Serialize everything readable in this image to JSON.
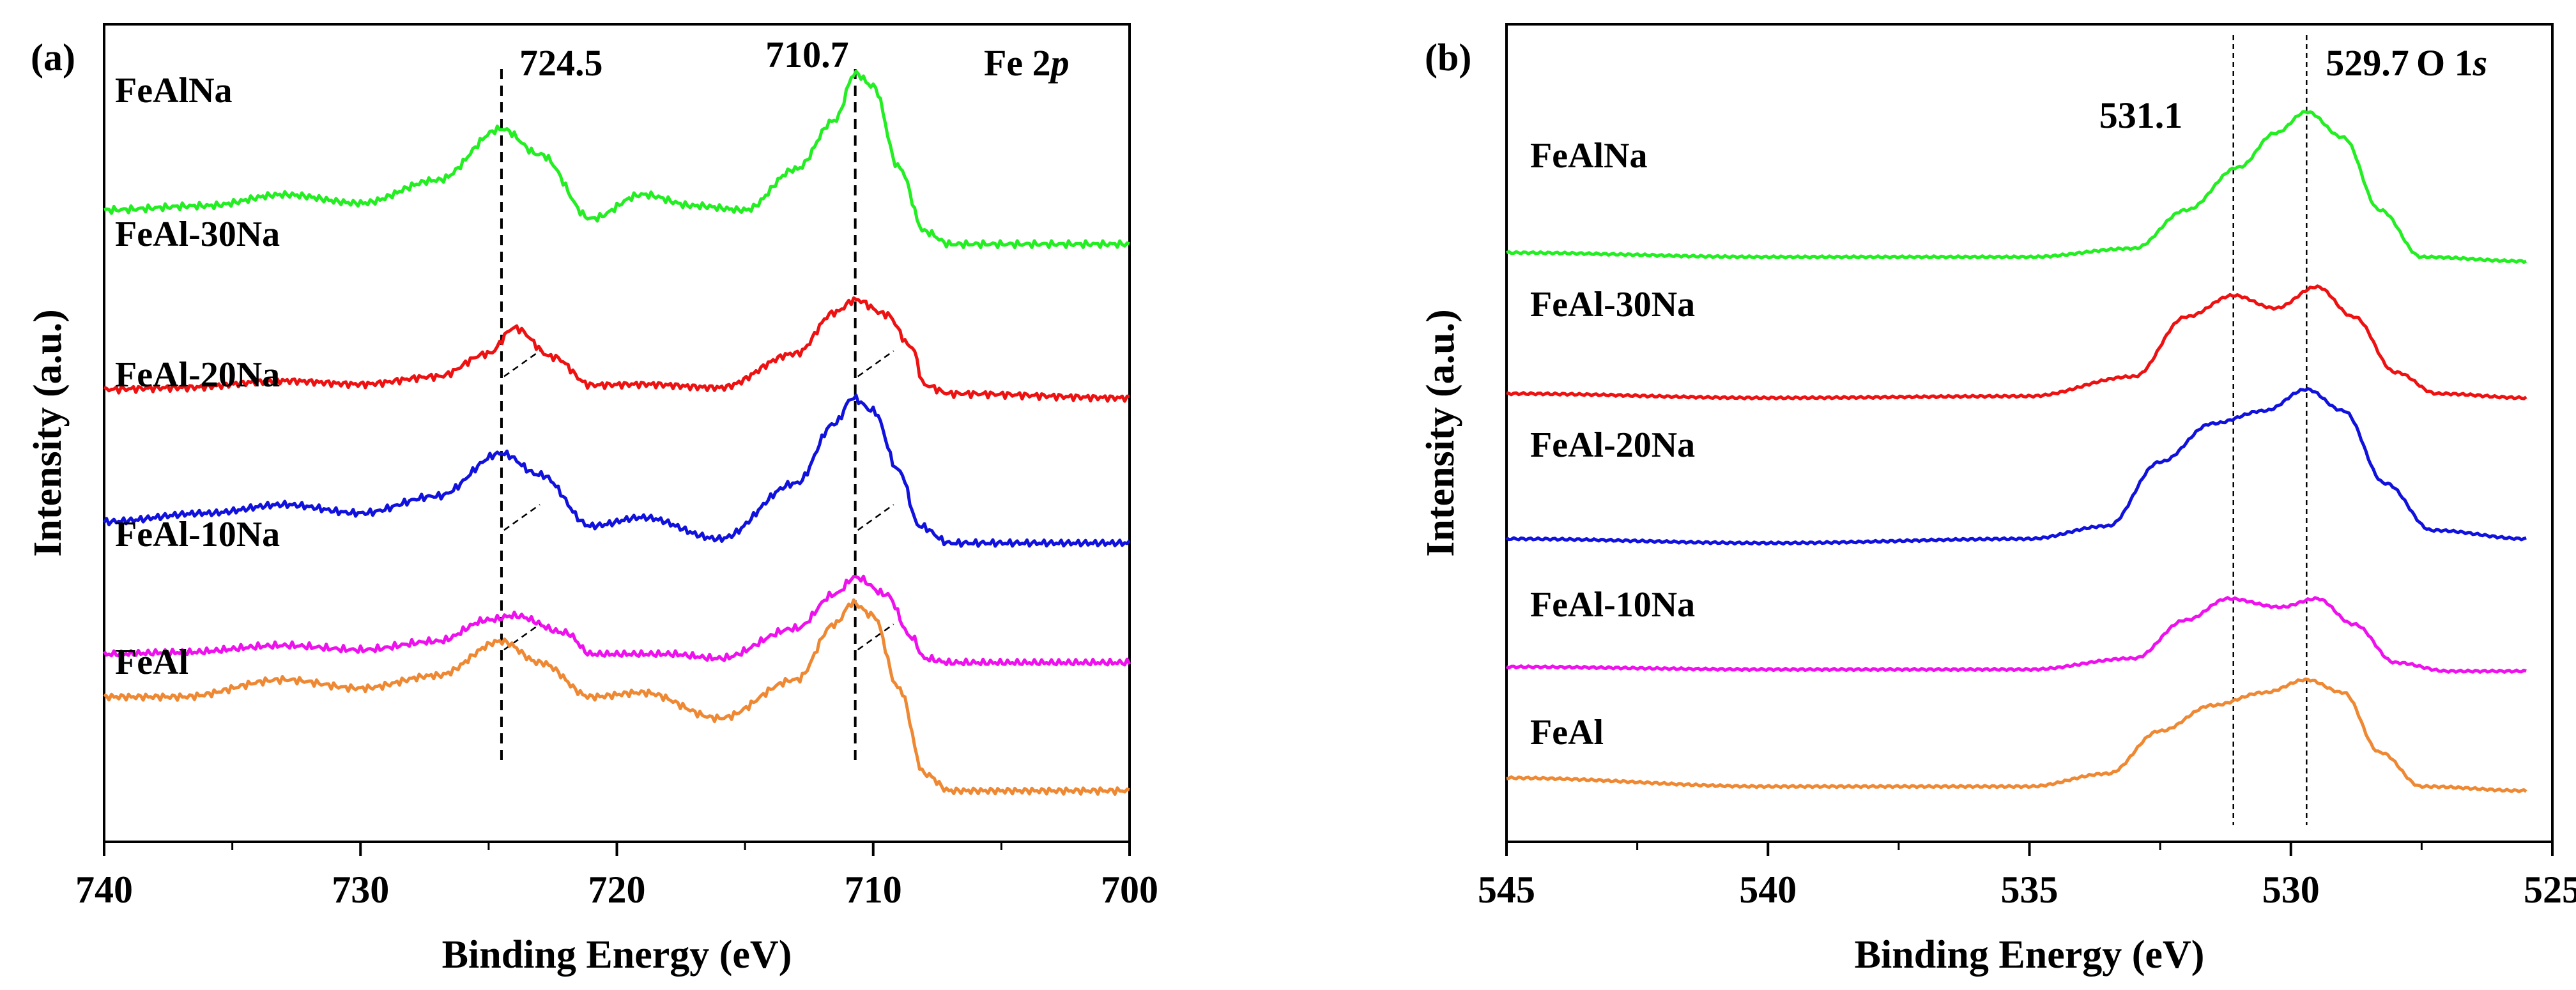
{
  "chart_data": [
    {
      "type": "line",
      "panel_label": "(a)",
      "element": "Fe 2",
      "element_orbital": "p",
      "xlabel": "Binding Energy (eV)",
      "ylabel": "Intensity (a.u.)",
      "xlim": [
        740,
        700
      ],
      "ticks": [
        740,
        730,
        720,
        710,
        700
      ],
      "tick_labels": [
        "740",
        "730",
        "720",
        "710",
        "700"
      ],
      "peaks": [
        {
          "position": 724.5,
          "label": "724.5"
        },
        {
          "position": 710.7,
          "label": "710.7"
        }
      ],
      "series": [
        {
          "name": "FeAlNa",
          "color": "#22ee22",
          "baseline": 6.4,
          "points": [
            [
              740,
              0.4
            ],
            [
              736,
              0.45
            ],
            [
              733,
              0.58
            ],
            [
              730,
              0.48
            ],
            [
              727,
              0.75
            ],
            [
              724.5,
              1.35
            ],
            [
              723,
              1.05
            ],
            [
              721,
              0.3
            ],
            [
              719,
              0.58
            ],
            [
              717,
              0.45
            ],
            [
              715,
              0.4
            ],
            [
              713,
              0.88
            ],
            [
              711.5,
              1.45
            ],
            [
              710.7,
              2.0
            ],
            [
              710,
              1.85
            ],
            [
              709,
              0.9
            ],
            [
              708,
              0.15
            ],
            [
              707,
              0.0
            ],
            [
              700,
              0.0
            ]
          ]
        },
        {
          "name": "FeAl-30Na",
          "color": "#ee1111",
          "baseline": 4.7,
          "points": [
            [
              740,
              0.0
            ],
            [
              737,
              0.02
            ],
            [
              733,
              0.1
            ],
            [
              730,
              0.06
            ],
            [
              727,
              0.15
            ],
            [
              725,
              0.42
            ],
            [
              724,
              0.72
            ],
            [
              722.5,
              0.38
            ],
            [
              721,
              0.05
            ],
            [
              719,
              0.06
            ],
            [
              716,
              0.02
            ],
            [
              713,
              0.42
            ],
            [
              711.5,
              0.9
            ],
            [
              710.7,
              1.05
            ],
            [
              709.5,
              0.88
            ],
            [
              708.5,
              0.5
            ],
            [
              708,
              0.05
            ],
            [
              707,
              -0.05
            ],
            [
              700,
              -0.1
            ]
          ]
        },
        {
          "name": "FeAl-20Na",
          "color": "#1111dd",
          "baseline": 2.9,
          "points": [
            [
              740,
              0.25
            ],
            [
              736,
              0.35
            ],
            [
              733,
              0.45
            ],
            [
              730,
              0.35
            ],
            [
              727,
              0.55
            ],
            [
              724.5,
              1.05
            ],
            [
              723,
              0.8
            ],
            [
              721,
              0.2
            ],
            [
              719,
              0.3
            ],
            [
              716,
              0.05
            ],
            [
              713,
              0.7
            ],
            [
              711.5,
              1.4
            ],
            [
              710.8,
              1.7
            ],
            [
              710,
              1.55
            ],
            [
              709,
              0.85
            ],
            [
              708.2,
              0.2
            ],
            [
              707,
              0.0
            ],
            [
              700,
              0.0
            ]
          ]
        },
        {
          "name": "FeAl-10Na",
          "color": "#ee11ee",
          "baseline": 1.5,
          "points": [
            [
              740,
              0.1
            ],
            [
              737,
              0.12
            ],
            [
              733,
              0.2
            ],
            [
              730,
              0.15
            ],
            [
              727,
              0.25
            ],
            [
              725,
              0.5
            ],
            [
              724,
              0.55
            ],
            [
              722,
              0.35
            ],
            [
              721,
              0.1
            ],
            [
              718,
              0.1
            ],
            [
              716,
              0.05
            ],
            [
              713,
              0.4
            ],
            [
              711.5,
              0.8
            ],
            [
              710.7,
              1.0
            ],
            [
              709.5,
              0.8
            ],
            [
              708.5,
              0.3
            ],
            [
              708,
              0.05
            ],
            [
              707,
              0.0
            ],
            [
              700,
              0.0
            ]
          ]
        },
        {
          "name": "FeAl",
          "color": "#ee8833",
          "baseline": 0.0,
          "points": [
            [
              740,
              1.1
            ],
            [
              737,
              1.1
            ],
            [
              733,
              1.3
            ],
            [
              730,
              1.2
            ],
            [
              727,
              1.35
            ],
            [
              724.5,
              1.75
            ],
            [
              723,
              1.5
            ],
            [
              721,
              1.1
            ],
            [
              719,
              1.15
            ],
            [
              716,
              0.85
            ],
            [
              713,
              1.3
            ],
            [
              711.5,
              1.95
            ],
            [
              710.8,
              2.2
            ],
            [
              710,
              2.05
            ],
            [
              709,
              1.2
            ],
            [
              708,
              0.2
            ],
            [
              707,
              0.0
            ],
            [
              700,
              0.0
            ]
          ]
        }
      ]
    },
    {
      "type": "line",
      "panel_label": "(b)",
      "element": "O 1",
      "element_orbital": "s",
      "xlabel": "Binding Energy (eV)",
      "ylabel": "Intensity (a.u.)",
      "xlim": [
        545,
        525
      ],
      "ticks": [
        545,
        540,
        535,
        530,
        525
      ],
      "tick_labels": [
        "545",
        "540",
        "535",
        "530",
        "525"
      ],
      "peaks": [
        {
          "position": 531.1,
          "label": "531.1"
        },
        {
          "position": 529.7,
          "label": "529.7"
        }
      ],
      "series": [
        {
          "name": "FeAlNa",
          "color": "#22ee22",
          "baseline": 6.2,
          "points": [
            [
              545,
              0.1
            ],
            [
              540,
              0.05
            ],
            [
              535,
              0.05
            ],
            [
              533,
              0.15
            ],
            [
              532,
              0.6
            ],
            [
              531,
              1.1
            ],
            [
              530.3,
              1.5
            ],
            [
              529.7,
              1.75
            ],
            [
              529,
              1.45
            ],
            [
              528.3,
              0.6
            ],
            [
              527.5,
              0.05
            ],
            [
              525.5,
              0.0
            ]
          ]
        },
        {
          "name": "FeAl-30Na",
          "color": "#ee1111",
          "baseline": 4.6,
          "points": [
            [
              545,
              0.05
            ],
            [
              540,
              0.0
            ],
            [
              535,
              0.02
            ],
            [
              533,
              0.25
            ],
            [
              532,
              0.95
            ],
            [
              531.1,
              1.2
            ],
            [
              530.3,
              1.05
            ],
            [
              529.5,
              1.3
            ],
            [
              528.8,
              0.95
            ],
            [
              528,
              0.3
            ],
            [
              527.2,
              0.05
            ],
            [
              525.5,
              0.0
            ]
          ]
        },
        {
          "name": "FeAl-20Na",
          "color": "#1111dd",
          "baseline": 2.9,
          "points": [
            [
              545,
              0.05
            ],
            [
              540,
              0.0
            ],
            [
              535,
              0.05
            ],
            [
              533.5,
              0.2
            ],
            [
              532.5,
              0.95
            ],
            [
              531.5,
              1.4
            ],
            [
              530.5,
              1.55
            ],
            [
              529.7,
              1.8
            ],
            [
              529,
              1.55
            ],
            [
              528.2,
              0.7
            ],
            [
              527.3,
              0.15
            ],
            [
              525.5,
              0.05
            ]
          ]
        },
        {
          "name": "FeAl-10Na",
          "color": "#ee11ee",
          "baseline": 1.4,
          "points": [
            [
              545,
              0.05
            ],
            [
              540,
              0.02
            ],
            [
              535,
              0.02
            ],
            [
              533,
              0.15
            ],
            [
              532,
              0.6
            ],
            [
              531.2,
              0.85
            ],
            [
              530.2,
              0.75
            ],
            [
              529.5,
              0.85
            ],
            [
              528.8,
              0.55
            ],
            [
              528,
              0.1
            ],
            [
              527,
              0.0
            ],
            [
              525.5,
              0.0
            ]
          ]
        },
        {
          "name": "FeAl",
          "color": "#ee8833",
          "baseline": 0.0,
          "points": [
            [
              545,
              0.15
            ],
            [
              540,
              0.05
            ],
            [
              535,
              0.05
            ],
            [
              533.5,
              0.2
            ],
            [
              532.5,
              0.7
            ],
            [
              531.5,
              1.0
            ],
            [
              530.5,
              1.15
            ],
            [
              529.7,
              1.3
            ],
            [
              529,
              1.15
            ],
            [
              528.3,
              0.45
            ],
            [
              527.5,
              0.05
            ],
            [
              525.5,
              0.0
            ]
          ]
        }
      ]
    }
  ]
}
